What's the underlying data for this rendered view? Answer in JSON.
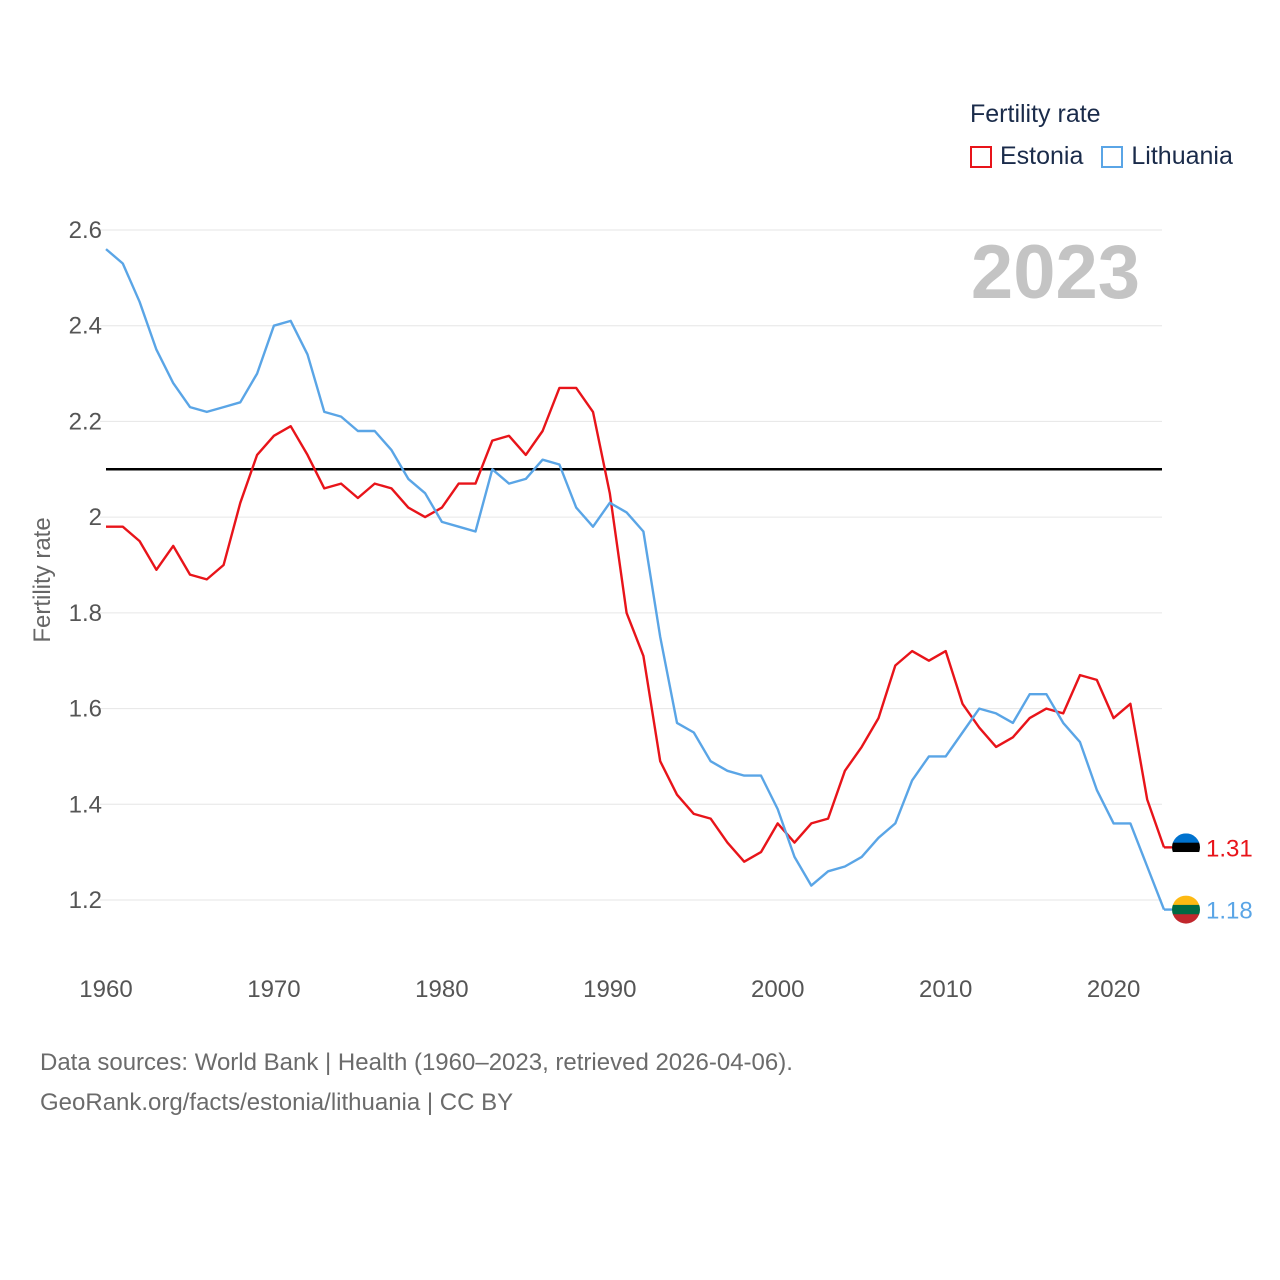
{
  "chart_data": {
    "type": "line",
    "title": "",
    "year_label": "2023",
    "ylabel": "Fertility rate",
    "xlabel": "",
    "xlim": [
      1960,
      2023
    ],
    "ylim": [
      1.1,
      2.6
    ],
    "x_ticks": [
      1960,
      1970,
      1980,
      1990,
      2000,
      2010,
      2020
    ],
    "y_ticks": [
      1.2,
      1.4,
      1.6,
      1.8,
      2.0,
      2.2,
      2.4,
      2.6
    ],
    "y_tick_labels": [
      "1.2",
      "1.4",
      "1.6",
      "1.8",
      "2",
      "2.2",
      "2.4",
      "2.6"
    ],
    "reference_line": 2.1,
    "legend_title": "Fertility rate",
    "years": [
      1960,
      1961,
      1962,
      1963,
      1964,
      1965,
      1966,
      1967,
      1968,
      1969,
      1970,
      1971,
      1972,
      1973,
      1974,
      1975,
      1976,
      1977,
      1978,
      1979,
      1980,
      1981,
      1982,
      1983,
      1984,
      1985,
      1986,
      1987,
      1988,
      1989,
      1990,
      1991,
      1992,
      1993,
      1994,
      1995,
      1996,
      1997,
      1998,
      1999,
      2000,
      2001,
      2002,
      2003,
      2004,
      2005,
      2006,
      2007,
      2008,
      2009,
      2010,
      2011,
      2012,
      2013,
      2014,
      2015,
      2016,
      2017,
      2018,
      2019,
      2020,
      2021,
      2022,
      2023
    ],
    "series": [
      {
        "name": "Estonia",
        "color": "#e8141a",
        "end_label": "1.31",
        "values": [
          1.98,
          1.98,
          1.95,
          1.89,
          1.94,
          1.88,
          1.87,
          1.9,
          2.03,
          2.13,
          2.17,
          2.19,
          2.13,
          2.06,
          2.07,
          2.04,
          2.07,
          2.06,
          2.02,
          2.0,
          2.02,
          2.07,
          2.07,
          2.16,
          2.17,
          2.13,
          2.18,
          2.27,
          2.27,
          2.22,
          2.05,
          1.8,
          1.71,
          1.49,
          1.42,
          1.38,
          1.37,
          1.32,
          1.28,
          1.3,
          1.36,
          1.32,
          1.36,
          1.37,
          1.47,
          1.52,
          1.58,
          1.69,
          1.72,
          1.7,
          1.72,
          1.61,
          1.56,
          1.52,
          1.54,
          1.58,
          1.6,
          1.59,
          1.67,
          1.66,
          1.58,
          1.61,
          1.41,
          1.31
        ]
      },
      {
        "name": "Lithuania",
        "color": "#5aa5e6",
        "end_label": "1.18",
        "values": [
          2.56,
          2.53,
          2.45,
          2.35,
          2.28,
          2.23,
          2.22,
          2.23,
          2.24,
          2.3,
          2.4,
          2.41,
          2.34,
          2.22,
          2.21,
          2.18,
          2.18,
          2.14,
          2.08,
          2.05,
          1.99,
          1.98,
          1.97,
          2.1,
          2.07,
          2.08,
          2.12,
          2.11,
          2.02,
          1.98,
          2.03,
          2.01,
          1.97,
          1.75,
          1.57,
          1.55,
          1.49,
          1.47,
          1.46,
          1.46,
          1.39,
          1.29,
          1.23,
          1.26,
          1.27,
          1.29,
          1.33,
          1.36,
          1.45,
          1.5,
          1.5,
          1.55,
          1.6,
          1.59,
          1.57,
          1.63,
          1.63,
          1.57,
          1.53,
          1.43,
          1.36,
          1.36,
          1.27,
          1.18
        ]
      }
    ]
  },
  "footer": {
    "line1": "Data sources: World Bank | Health (1960–2023, retrieved 2026-04-06).",
    "line2": "GeoRank.org/facts/estonia/lithuania | CC BY"
  },
  "flags": {
    "estonia": [
      "#0072ce",
      "#000000",
      "#ffffff"
    ],
    "lithuania": [
      "#fdb913",
      "#006a44",
      "#c1272d"
    ]
  }
}
